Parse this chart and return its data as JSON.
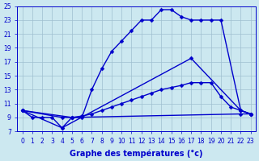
{
  "xlabel": "Graphe des températures (°c)",
  "background_color": "#cce8f0",
  "grid_color": "#9fbfcf",
  "line_color": "#0000cc",
  "xmin": -0.5,
  "xmax": 23.5,
  "ymin": 7,
  "ymax": 25,
  "yticks": [
    7,
    9,
    11,
    13,
    15,
    17,
    19,
    21,
    23,
    25
  ],
  "xticks": [
    0,
    1,
    2,
    3,
    4,
    5,
    6,
    7,
    8,
    9,
    10,
    11,
    12,
    13,
    14,
    15,
    16,
    17,
    18,
    19,
    20,
    21,
    22,
    23
  ],
  "curve1_x": [
    0,
    1,
    2,
    3,
    4,
    5,
    6,
    7,
    8,
    9,
    10,
    11,
    12,
    13,
    14,
    15,
    16,
    17,
    18,
    19,
    20,
    22,
    23
  ],
  "curve1_y": [
    10,
    9,
    9,
    9,
    7.5,
    9,
    9,
    13,
    16,
    18.5,
    20,
    21.5,
    23,
    23,
    24.5,
    24.5,
    23.5,
    23,
    23,
    23,
    23,
    10,
    9.5
  ],
  "curve2_x": [
    0,
    4,
    17,
    22,
    23
  ],
  "curve2_y": [
    10,
    7.5,
    17.5,
    10,
    9.5
  ],
  "curve3_x": [
    0,
    4,
    5,
    6,
    7,
    8,
    9,
    10,
    11,
    12,
    13,
    14,
    15,
    16,
    17,
    18,
    19,
    20,
    21,
    22,
    23
  ],
  "curve3_y": [
    10,
    9,
    9,
    9.2,
    9.5,
    10,
    10.5,
    11,
    11.5,
    12,
    12.5,
    13,
    13.3,
    13.6,
    14,
    14,
    14,
    12,
    10.5,
    10,
    9.5
  ],
  "curve4_x": [
    0,
    5,
    22,
    23
  ],
  "curve4_y": [
    10,
    9,
    9.5,
    9.5
  ],
  "marker_size": 2.5,
  "linewidth": 1.0,
  "tick_fontsize": 5.5,
  "xlabel_fontsize": 7
}
